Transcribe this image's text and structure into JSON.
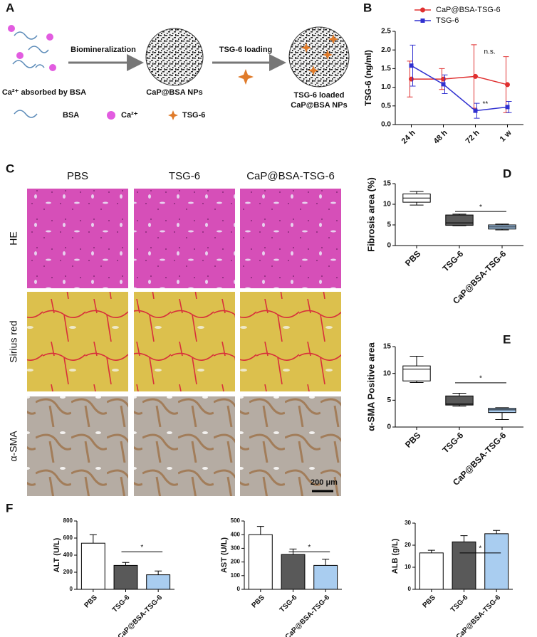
{
  "panels": [
    "A",
    "B",
    "C",
    "D",
    "E",
    "F"
  ],
  "schematic": {
    "steps": [
      "Biomineralization",
      "TSG-6 loading"
    ],
    "stage_labels": [
      "Ca²⁺ absorbed by BSA",
      "CaP@BSA NPs",
      "TSG-6 loaded",
      "CaP@BSA NPs"
    ],
    "legend": [
      "BSA",
      "Ca²⁺",
      "TSG-6"
    ]
  },
  "histology": {
    "columns": [
      "PBS",
      "TSG-6",
      "CaP@BSA-TSG-6"
    ],
    "rows": [
      "HE",
      "Sirius red",
      "α-SMA"
    ],
    "scale_bar": "200 μm"
  },
  "chart_data": [
    {
      "type": "line",
      "y_label": "TSG-6 (ng/ml)",
      "categories": [
        "24 h",
        "48 h",
        "72 h",
        "1 w"
      ],
      "ylim": [
        0,
        2.5
      ],
      "yticks": [
        {
          "value": 0,
          "label": "0.0"
        },
        0.5,
        {
          "value": 1,
          "label": "1.0"
        },
        1.5,
        {
          "value": 2,
          "label": "2.0"
        },
        2.5
      ],
      "series": [
        {
          "name": "CaP@BSA-TSG-6",
          "color": "#e03030",
          "values": [
            1.22,
            1.22,
            1.29,
            1.07
          ],
          "errors": [
            0.48,
            0.28,
            0.85,
            0.75
          ]
        },
        {
          "name": "TSG-6",
          "color": "#3030d0",
          "values": [
            1.58,
            1.08,
            0.37,
            0.47
          ],
          "errors": [
            0.55,
            0.25,
            0.2,
            0.15
          ]
        }
      ],
      "annotations": [
        "n.s.",
        "**"
      ]
    },
    {
      "type": "box",
      "y_label": "Fibrosis area (%)",
      "categories": [
        "PBS",
        "TSG-6",
        "CaP@BSA-TSG-6"
      ],
      "ylim": [
        0,
        15
      ],
      "yticks": [
        0,
        5,
        10,
        15
      ],
      "colors": [
        "#ffffff",
        "#595959",
        "#a9cdf0"
      ],
      "boxes": [
        {
          "min": 9.8,
          "q1": 10.5,
          "median": 11.5,
          "q3": 12.5,
          "max": 13.1
        },
        {
          "min": 4.8,
          "q1": 4.9,
          "median": 5.5,
          "q3": 7.4,
          "max": 7.6
        },
        {
          "min": 3.8,
          "q1": 4.0,
          "median": 4.5,
          "q3": 5.0,
          "max": 5.2
        }
      ],
      "annotation": "*"
    },
    {
      "type": "box",
      "y_label": "α-SMA Positive area",
      "categories": [
        "PBS",
        "TSG-6",
        "CaP@BSA-TSG-6"
      ],
      "ylim": [
        0,
        15
      ],
      "yticks": [
        0,
        5,
        10,
        15
      ],
      "colors": [
        "#ffffff",
        "#595959",
        "#a9cdf0"
      ],
      "boxes": [
        {
          "min": 8.3,
          "q1": 8.6,
          "median": 10.8,
          "q3": 11.4,
          "max": 13.2
        },
        {
          "min": 3.9,
          "q1": 4.1,
          "median": 4.3,
          "q3": 5.8,
          "max": 6.3
        },
        {
          "min": 1.4,
          "q1": 2.7,
          "median": 3.2,
          "q3": 3.5,
          "max": 3.6
        }
      ],
      "annotation": "*"
    },
    {
      "type": "bar",
      "y_label": "ALT (U/L)",
      "categories": [
        "PBS",
        "TSG-6",
        "CaP@BSA-TSG-6"
      ],
      "ylim": [
        0,
        800
      ],
      "yticks": [
        0,
        200,
        400,
        600,
        800
      ],
      "colors": [
        "#ffffff",
        "#595959",
        "#a9cdf0"
      ],
      "values": [
        540,
        280,
        170
      ],
      "errors": [
        100,
        35,
        45
      ],
      "annotation": "*"
    },
    {
      "type": "bar",
      "y_label": "AST (U/L)",
      "categories": [
        "PBS",
        "TSG-6",
        "CaP@BSA-TSG-6"
      ],
      "ylim": [
        0,
        500
      ],
      "yticks": [
        0,
        100,
        200,
        300,
        400,
        500
      ],
      "colors": [
        "#ffffff",
        "#595959",
        "#a9cdf0"
      ],
      "values": [
        400,
        255,
        175
      ],
      "errors": [
        60,
        40,
        45
      ],
      "annotation": "*"
    },
    {
      "type": "bar",
      "y_label": "ALB (g/L)",
      "categories": [
        "PBS",
        "TSG-6",
        "CaP@BSA-TSG-6"
      ],
      "ylim": [
        0,
        30
      ],
      "yticks": [
        0,
        10,
        20,
        30
      ],
      "colors": [
        "#ffffff",
        "#595959",
        "#a9cdf0"
      ],
      "values": [
        16.5,
        21.5,
        25.2
      ],
      "errors": [
        1.2,
        2.8,
        1.5
      ],
      "annotation": "*"
    }
  ]
}
